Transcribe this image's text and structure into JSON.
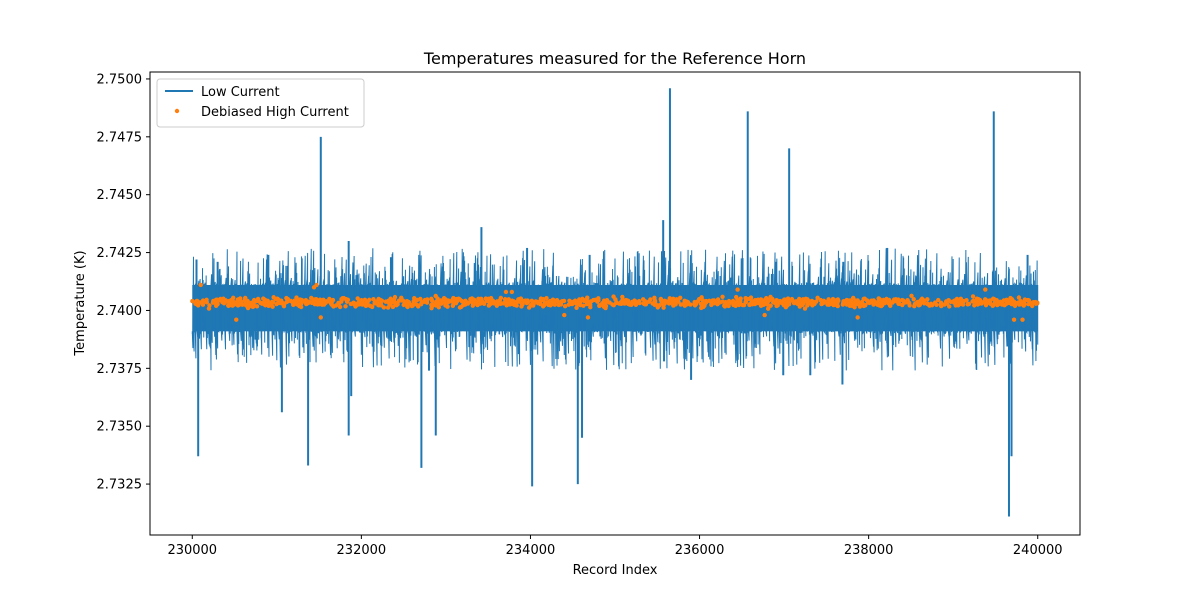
{
  "chart_data": {
    "type": "line",
    "title": "Temperatures measured for the Reference Horn",
    "xlabel": "Record Index",
    "ylabel": "Temperature (K)",
    "xlim": [
      229500,
      240500
    ],
    "ylim": [
      2.7303,
      2.7503
    ],
    "xticks": [
      230000,
      232000,
      234000,
      236000,
      238000,
      240000
    ],
    "xtick_labels": [
      "230000",
      "232000",
      "234000",
      "236000",
      "238000",
      "240000"
    ],
    "yticks": [
      2.7325,
      2.735,
      2.7375,
      2.74,
      2.7425,
      2.745,
      2.7475,
      2.75
    ],
    "ytick_labels": [
      "2.7325",
      "2.7350",
      "2.7375",
      "2.7400",
      "2.7425",
      "2.7450",
      "2.7475",
      "2.7500"
    ],
    "grid": false,
    "legend_position": "top-left",
    "series": [
      {
        "name": "Low Current",
        "kind": "line",
        "color": "#1f77b4",
        "x_start": 230000,
        "x_end": 240000,
        "baseline": 2.7403,
        "band_low": 2.7391,
        "band_high": 2.7411,
        "upper_spikes": [
          [
            230050,
            2.7422
          ],
          [
            230300,
            2.7421
          ],
          [
            231520,
            2.7475
          ],
          [
            231850,
            2.743
          ],
          [
            233420,
            2.7436
          ],
          [
            233960,
            2.7427
          ],
          [
            235570,
            2.7439
          ],
          [
            235650,
            2.7496
          ],
          [
            236570,
            2.7486
          ],
          [
            237060,
            2.747
          ],
          [
            238220,
            2.7427
          ],
          [
            239480,
            2.7486
          ],
          [
            239880,
            2.7424
          ],
          [
            234700,
            2.7424
          ],
          [
            236900,
            2.7421
          ],
          [
            232350,
            2.7423
          ],
          [
            230900,
            2.7424
          ],
          [
            237700,
            2.7421
          ]
        ],
        "lower_spikes": [
          [
            230070,
            2.7337
          ],
          [
            231060,
            2.7356
          ],
          [
            231370,
            2.7333
          ],
          [
            231850,
            2.7346
          ],
          [
            231880,
            2.7363
          ],
          [
            232710,
            2.7332
          ],
          [
            232880,
            2.7346
          ],
          [
            234020,
            2.7324
          ],
          [
            234560,
            2.7325
          ],
          [
            234610,
            2.7345
          ],
          [
            239660,
            2.7311
          ],
          [
            239690,
            2.7337
          ],
          [
            235580,
            2.7378
          ],
          [
            237690,
            2.7368
          ],
          [
            235900,
            2.737
          ],
          [
            232800,
            2.7374
          ],
          [
            236990,
            2.7372
          ],
          [
            237310,
            2.7372
          ]
        ]
      },
      {
        "name": "Debiased High Current",
        "kind": "scatter",
        "color": "#ff7f0e",
        "x_start": 230000,
        "x_end": 240000,
        "center": 2.74035,
        "spread": 0.0003,
        "outliers": [
          [
            230100,
            2.7411
          ],
          [
            230520,
            2.7396
          ],
          [
            231440,
            2.741
          ],
          [
            231470,
            2.7411
          ],
          [
            231520,
            2.7397
          ],
          [
            233710,
            2.7408
          ],
          [
            233780,
            2.7408
          ],
          [
            234400,
            2.7398
          ],
          [
            234680,
            2.7397
          ],
          [
            236450,
            2.7409
          ],
          [
            237870,
            2.7397
          ],
          [
            239380,
            2.7409
          ],
          [
            239720,
            2.7396
          ],
          [
            239820,
            2.7396
          ],
          [
            236770,
            2.7398
          ]
        ]
      }
    ]
  }
}
